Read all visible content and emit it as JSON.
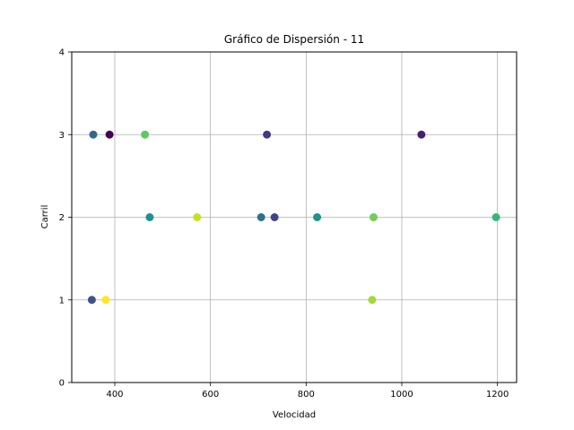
{
  "chart_data": {
    "type": "scatter",
    "title": "Gráfico de Dispersión -  11",
    "xlabel": "Velocidad",
    "ylabel": "Carril",
    "xlim": [
      310,
      1240
    ],
    "ylim": [
      0,
      4
    ],
    "xticks": [
      400,
      600,
      800,
      1000,
      1200
    ],
    "yticks": [
      0,
      1,
      2,
      3,
      4
    ],
    "grid": true,
    "colormap": "viridis",
    "points": [
      {
        "x": 355,
        "y": 3,
        "color": "#31688e"
      },
      {
        "x": 389,
        "y": 3,
        "color": "#440154"
      },
      {
        "x": 463,
        "y": 3,
        "color": "#5ec962"
      },
      {
        "x": 718,
        "y": 3,
        "color": "#443983"
      },
      {
        "x": 1041,
        "y": 3,
        "color": "#481f70"
      },
      {
        "x": 473,
        "y": 2,
        "color": "#21918c"
      },
      {
        "x": 572,
        "y": 2,
        "color": "#c8e020"
      },
      {
        "x": 706,
        "y": 2,
        "color": "#2c728e"
      },
      {
        "x": 734,
        "y": 2,
        "color": "#414487"
      },
      {
        "x": 823,
        "y": 2,
        "color": "#21918c"
      },
      {
        "x": 941,
        "y": 2,
        "color": "#6ece58"
      },
      {
        "x": 1197,
        "y": 2,
        "color": "#35b779"
      },
      {
        "x": 352,
        "y": 1,
        "color": "#3b528b"
      },
      {
        "x": 381,
        "y": 1,
        "color": "#fde725"
      },
      {
        "x": 938,
        "y": 1,
        "color": "#a0da39"
      }
    ]
  }
}
